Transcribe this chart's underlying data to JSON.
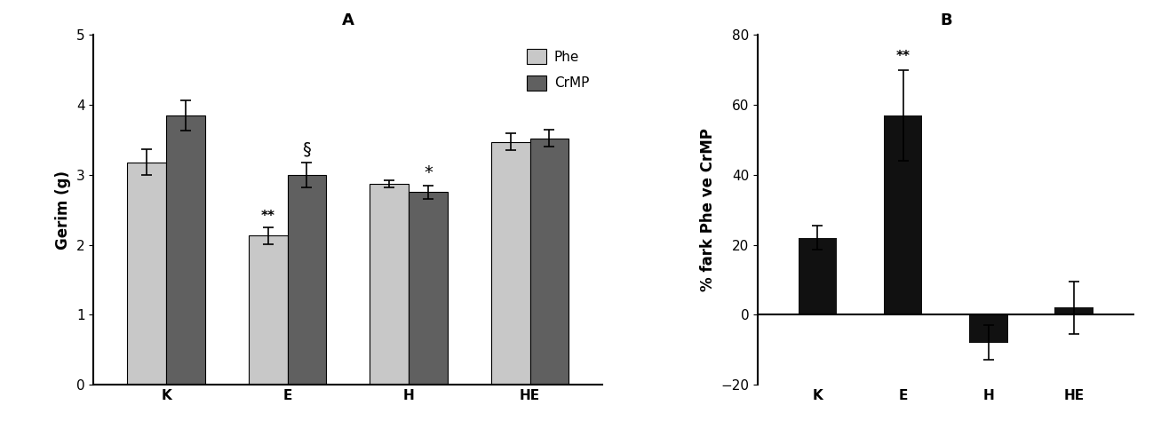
{
  "panel_A": {
    "title": "A",
    "categories": [
      "K",
      "E",
      "H",
      "HE"
    ],
    "phe_values": [
      3.18,
      2.13,
      2.87,
      3.47
    ],
    "crmp_values": [
      3.85,
      3.0,
      2.75,
      3.52
    ],
    "phe_errors": [
      0.18,
      0.12,
      0.05,
      0.12
    ],
    "crmp_errors": [
      0.22,
      0.18,
      0.1,
      0.12
    ],
    "phe_color": "#c8c8c8",
    "crmp_color": "#606060",
    "ylabel": "Gerim (g)",
    "ylim": [
      0,
      5
    ],
    "yticks": [
      0,
      1,
      2,
      3,
      4,
      5
    ],
    "bar_width": 0.32,
    "annotations_phe": [
      "",
      "**",
      "",
      ""
    ],
    "annotations_crmp": [
      "",
      "§",
      "*",
      ""
    ],
    "legend_phe": "Phe",
    "legend_crmp": "CrMP"
  },
  "panel_B": {
    "title": "B",
    "categories": [
      "K",
      "E",
      "H",
      "HE"
    ],
    "values": [
      22.0,
      57.0,
      -8.0,
      2.0
    ],
    "errors": [
      3.5,
      13.0,
      5.0,
      7.5
    ],
    "bar_color": "#111111",
    "ylabel": "% fark Phe ve CrMP",
    "ylim": [
      -20,
      80
    ],
    "yticks": [
      -20,
      0,
      20,
      40,
      60,
      80
    ],
    "bar_width": 0.45,
    "annotations": [
      "",
      "**",
      "",
      ""
    ]
  },
  "figure_bg": "#ffffff",
  "tick_fontsize": 11,
  "label_fontsize": 12,
  "title_fontsize": 13,
  "annotation_fontsize": 11,
  "gridspec_ratios": [
    1.15,
    0.85
  ]
}
